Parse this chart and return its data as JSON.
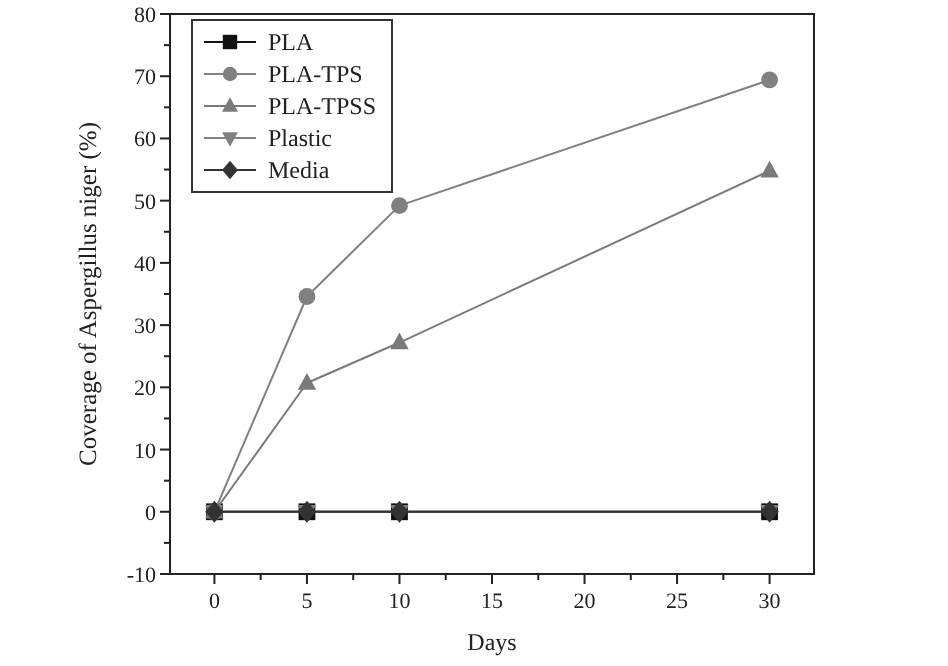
{
  "chart_data": {
    "type": "line",
    "xlabel": "Days",
    "ylabel": "Coverage of Aspergillus niger (%)",
    "x": [
      0,
      5,
      10,
      30
    ],
    "xlim": [
      -2.4,
      32.4
    ],
    "xticks": [
      0,
      {
        "value": 2.5,
        "label": null
      },
      5,
      {
        "value": 7.5,
        "label": null
      },
      10,
      {
        "value": 12.5,
        "label": null
      },
      15,
      {
        "value": 17.5,
        "label": null
      },
      20,
      {
        "value": 22.5,
        "label": null
      },
      25,
      {
        "value": 27.5,
        "label": null
      },
      30
    ],
    "ylim": [
      -10,
      80
    ],
    "yticks": [
      -10,
      {
        "value": -5,
        "label": null
      },
      0,
      {
        "value": 5,
        "label": null
      },
      10,
      {
        "value": 15,
        "label": null
      },
      20,
      {
        "value": 25,
        "label": null
      },
      30,
      {
        "value": 35,
        "label": null
      },
      40,
      {
        "value": 45,
        "label": null
      },
      50,
      {
        "value": 55,
        "label": null
      },
      60,
      {
        "value": 65,
        "label": null
      },
      70,
      {
        "value": 75,
        "label": null
      },
      80
    ],
    "grid": false,
    "legend": "top left",
    "line_style": "solid",
    "series": [
      {
        "name": "PLA",
        "color": "#111111",
        "marker": "square",
        "values": [
          0,
          0,
          0,
          0
        ]
      },
      {
        "name": "PLA-TPS",
        "color": "#808080",
        "marker": "circle",
        "values": [
          0,
          34.6,
          49.2,
          69.4
        ]
      },
      {
        "name": "PLA-TPSS",
        "color": "#7a7a7a",
        "marker": "triangle",
        "values": [
          0,
          20.7,
          27.2,
          54.8
        ]
      },
      {
        "name": "Plastic",
        "color": "#808080",
        "marker": "triangle-down",
        "values": [
          0,
          0,
          0,
          0
        ]
      },
      {
        "name": "Media",
        "color": "#333333",
        "marker": "diamond",
        "values": [
          0,
          0,
          0,
          0
        ]
      }
    ]
  }
}
